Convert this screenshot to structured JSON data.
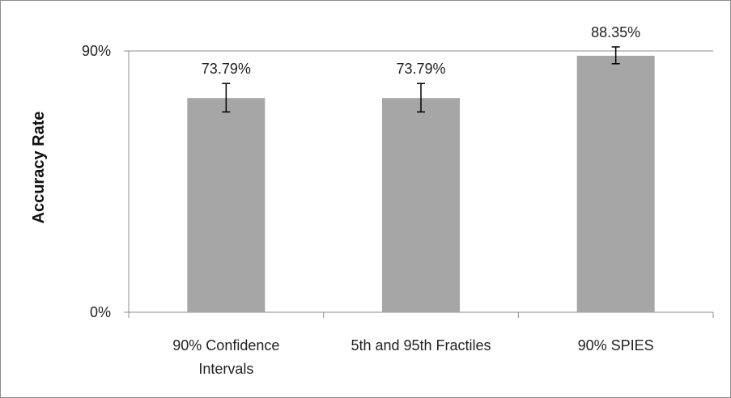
{
  "chart_data": {
    "type": "bar",
    "title": "",
    "xlabel": "",
    "ylabel": "Accuracy Rate",
    "categories": [
      [
        "90% Confidence",
        "Intervals"
      ],
      [
        "5th and 95th Fractiles"
      ],
      [
        "90% SPIES"
      ]
    ],
    "values": [
      73.79,
      73.79,
      88.35
    ],
    "data_labels": [
      "73.79%",
      "73.79%",
      "88.35%"
    ],
    "error_bars": [
      {
        "low": 69.0,
        "high": 78.8
      },
      {
        "low": 69.0,
        "high": 78.8
      },
      {
        "low": 85.6,
        "high": 91.4
      }
    ],
    "ylim": [
      0,
      90
    ],
    "yticks": [
      {
        "value": 0,
        "label": "0%"
      },
      {
        "value": 90,
        "label": "90%"
      }
    ],
    "grid": true,
    "legend": "none",
    "colors": {
      "bar": "#a6a6a6",
      "grid": "#8c8c8c",
      "error_bar": "#000000"
    }
  }
}
